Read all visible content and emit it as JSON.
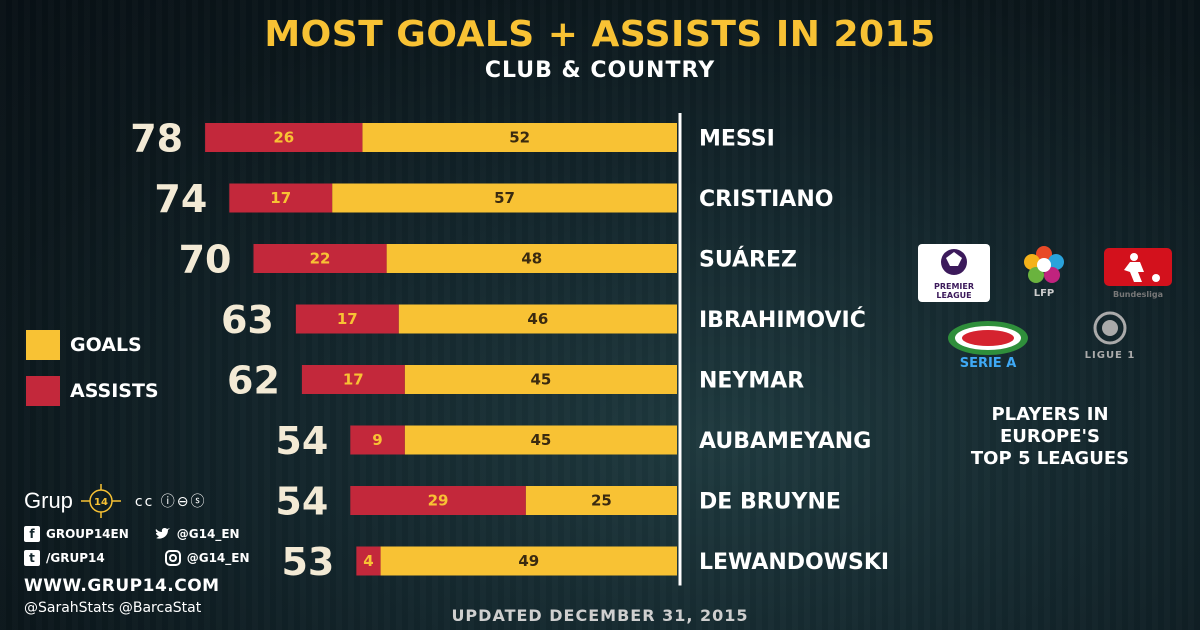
{
  "title": "MOST GOALS + ASSISTS IN 2015",
  "subtitle": "CLUB & COUNTRY",
  "legend": {
    "goals_label": "GOALS",
    "assists_label": "ASSISTS",
    "goals_color": "#f8c234",
    "assists_color": "#c3283b"
  },
  "chart_data": {
    "type": "bar",
    "orientation": "horizontal-stacked",
    "categories": [
      "MESSI",
      "CRISTIANO",
      "SUÁREZ",
      "IBRAHIMOVIĆ",
      "NEYMAR",
      "AUBAMEYANG",
      "DE BRUYNE",
      "LEWANDOWSKI"
    ],
    "totals": [
      78,
      74,
      70,
      63,
      62,
      54,
      54,
      53
    ],
    "series": [
      {
        "name": "ASSISTS",
        "values": [
          26,
          17,
          22,
          17,
          17,
          9,
          29,
          4
        ],
        "color": "#c3283b"
      },
      {
        "name": "GOALS",
        "values": [
          52,
          57,
          48,
          46,
          45,
          45,
          25,
          49
        ],
        "color": "#f8c234"
      }
    ],
    "title": "MOST GOALS + ASSISTS IN 2015",
    "subtitle": "CLUB & COUNTRY",
    "legend_placement": "left",
    "grid": false
  },
  "credits": {
    "brand": "Grup",
    "brand_badge": "14",
    "cc_icons": "cc ⓘ⊖ⓢ",
    "facebook": "GROUP14EN",
    "twitter": "@G14_EN",
    "tumblr": "/GRUP14",
    "instagram": "@G14_EN",
    "website": "WWW.GRUP14.COM",
    "handles": "@SarahStats @BarcaStat"
  },
  "leagues": {
    "premier_league": "PREMIER LEAGUE",
    "lfp": "LFP",
    "bundesliga": "Bundesliga",
    "serie_a": "SERIE A",
    "ligue1": "LIGUE 1",
    "caption_lines": [
      "PLAYERS IN",
      "EUROPE'S",
      "TOP 5 LEAGUES"
    ]
  },
  "footer": {
    "updated": "UPDATED DECEMBER 31, 2015"
  }
}
